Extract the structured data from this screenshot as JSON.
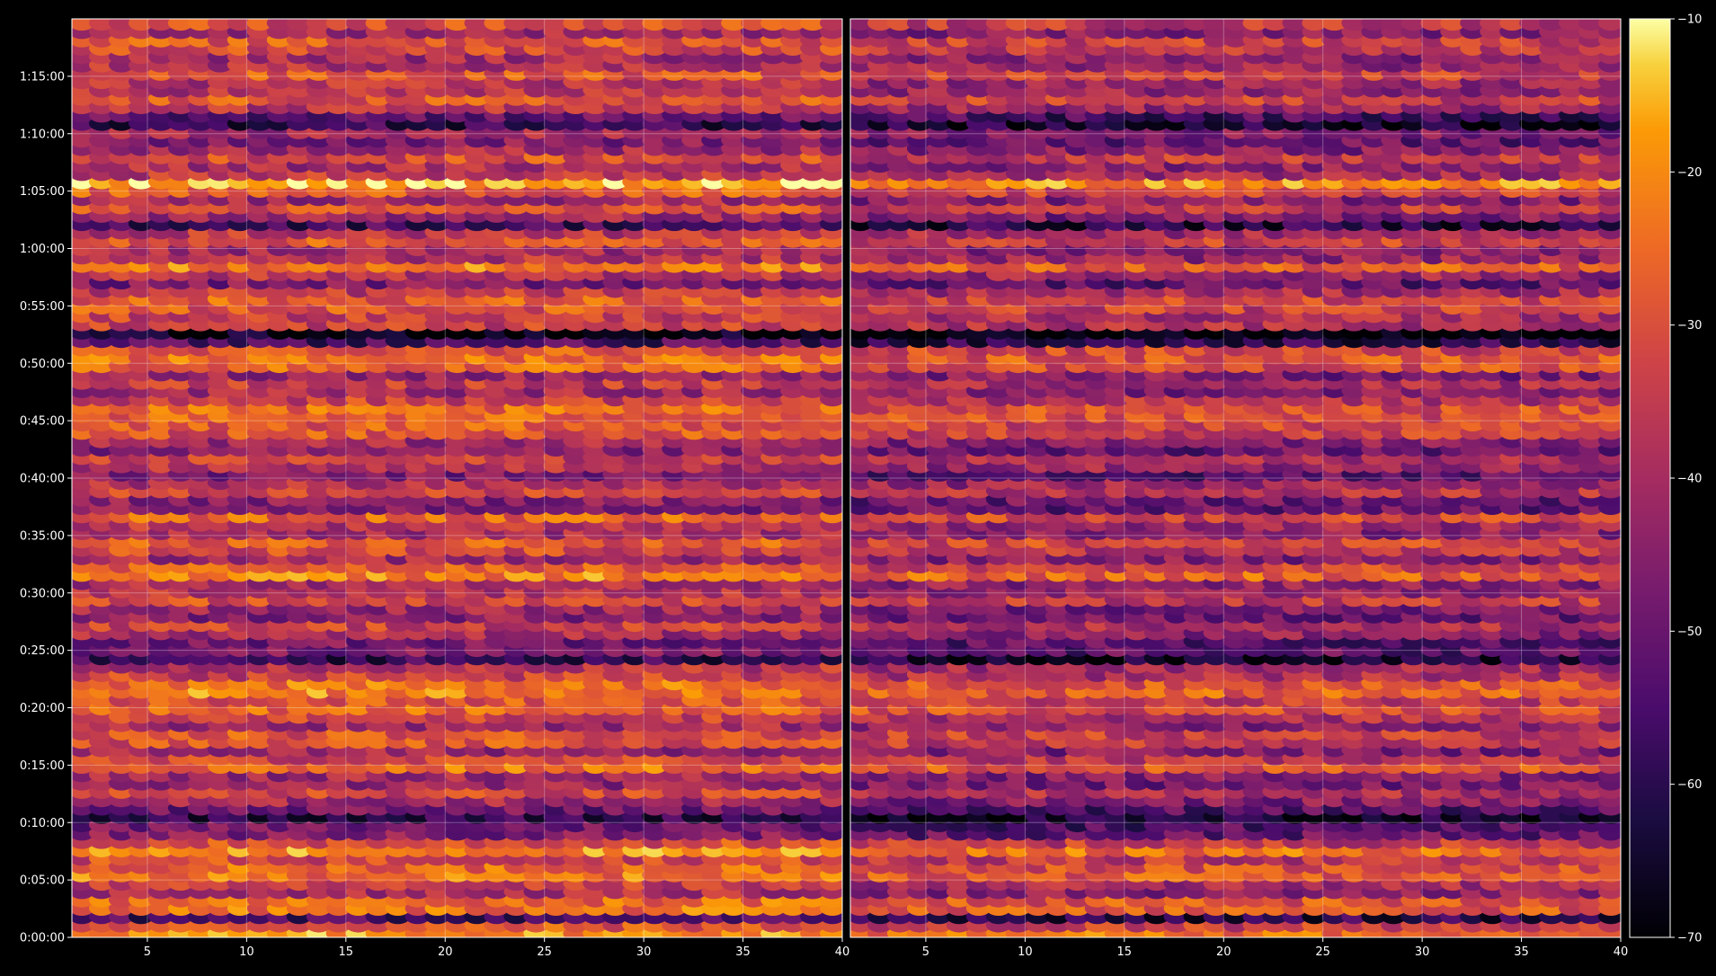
{
  "colors": {
    "background": "#000000",
    "axis": "#ffffff",
    "grid": "#ffffff",
    "colormap": "inferno"
  },
  "chart_data": [
    {
      "type": "heatmap",
      "panel": "left",
      "title": "",
      "xlabel": "",
      "ylabel": "",
      "xlim": [
        1.2,
        40
      ],
      "ylim": [
        0,
        4800
      ],
      "x_ticks": [
        5,
        10,
        15,
        20,
        25,
        30,
        35,
        40
      ],
      "x_tick_labels": [
        "5",
        "10",
        "15",
        "20",
        "25",
        "30",
        "35",
        "40"
      ],
      "y_ticks": [
        0,
        300,
        600,
        900,
        1200,
        1500,
        1800,
        2100,
        2400,
        2700,
        3000,
        3300,
        3600,
        3900,
        4200,
        4500
      ],
      "y_tick_labels": [
        "0:00:00",
        "0:05:00",
        "0:10:00",
        "0:15:00",
        "0:20:00",
        "0:25:00",
        "0:30:00",
        "0:35:00",
        "0:40:00",
        "0:45:00",
        "0:50:00",
        "0:55:00",
        "1:00:00",
        "1:05:00",
        "1:10:00",
        "1:15:00"
      ],
      "grid": true,
      "notes": "Spectrogram-style heatmap of levels; bright bands near 0:00:30-0:01:00, 0:06:00-0:08:30, 0:21:20, 0:45:10, 0:50:00, 0:55:00, 1:05:50; dark bands near 0:01:40, 0:10:20, 0:24:30, 0:37:30, 0:49:00, 0:52:40, 1:02:30, 1:11:00, 1:17:30"
    },
    {
      "type": "heatmap",
      "panel": "right",
      "title": "",
      "xlabel": "",
      "ylabel": "",
      "xlim": [
        1.2,
        40
      ],
      "ylim": [
        0,
        4800
      ],
      "x_ticks": [
        5,
        10,
        15,
        20,
        25,
        30,
        35,
        40
      ],
      "x_tick_labels": [
        "5",
        "10",
        "15",
        "20",
        "25",
        "30",
        "35",
        "40"
      ],
      "grid": true,
      "notes": "Second channel, similar band structure, overall slightly darker"
    }
  ],
  "colorbar": {
    "min": -70,
    "max": -10,
    "ticks": [
      -10,
      -20,
      -30,
      -40,
      -50,
      -60,
      -70
    ],
    "tick_labels": [
      "−10",
      "−20",
      "−30",
      "−40",
      "−50",
      "−60",
      "−70"
    ]
  }
}
